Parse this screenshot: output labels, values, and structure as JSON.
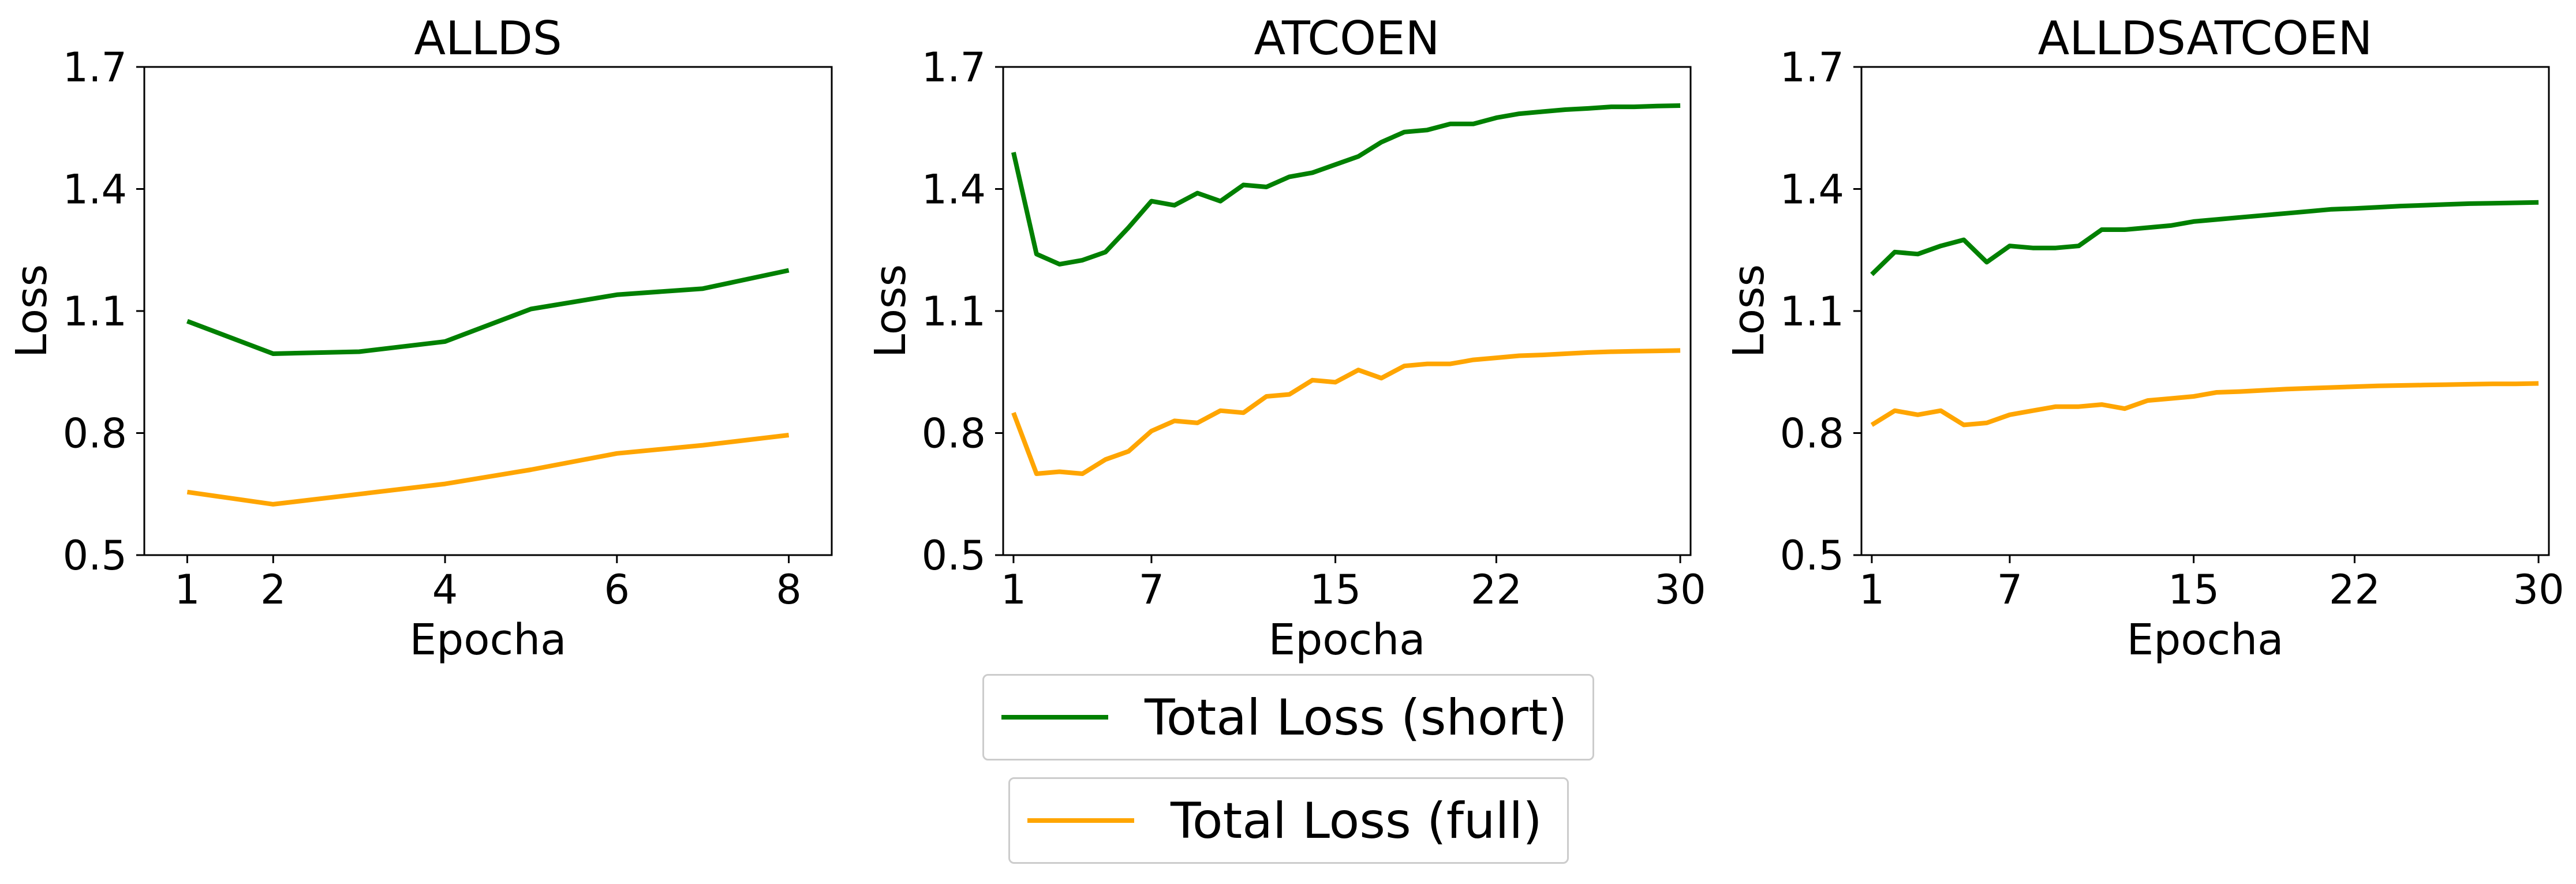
{
  "chart_data": [
    {
      "type": "line",
      "title": "ALLDS",
      "xlabel": "Epocha",
      "ylabel": "Loss",
      "ylim": [
        0.5,
        1.7
      ],
      "xlim": [
        0.5,
        8.5
      ],
      "xticks": [
        1,
        2,
        4,
        6,
        8
      ],
      "yticks": [
        0.5,
        0.8,
        1.1,
        1.4,
        1.7
      ],
      "ytick_labels": [
        "0.5",
        "0.8",
        "1.1",
        "1.4",
        "1.7"
      ],
      "grid": false,
      "x": [
        1,
        2,
        3,
        4,
        5,
        6,
        7,
        8
      ],
      "series": [
        {
          "color": "#008000",
          "values": [
            1.075,
            0.995,
            1.0,
            1.025,
            1.105,
            1.14,
            1.155,
            1.2
          ]
        },
        {
          "color": "#FFA500",
          "values": [
            0.655,
            0.625,
            0.65,
            0.675,
            0.71,
            0.75,
            0.77,
            0.795
          ]
        }
      ]
    },
    {
      "type": "line",
      "title": "ATCOEN",
      "xlabel": "Epocha",
      "ylabel": "Loss",
      "ylim": [
        0.5,
        1.7
      ],
      "xlim": [
        0.55,
        30.45
      ],
      "xticks": [
        1,
        7,
        15,
        22,
        30
      ],
      "yticks": [
        0.5,
        0.8,
        1.1,
        1.4,
        1.7
      ],
      "ytick_labels": [
        "0.5",
        "0.8",
        "1.1",
        "1.4",
        "1.7"
      ],
      "grid": false,
      "x": [
        1,
        2,
        3,
        4,
        5,
        6,
        7,
        8,
        9,
        10,
        11,
        12,
        13,
        14,
        15,
        16,
        17,
        18,
        19,
        20,
        21,
        22,
        23,
        24,
        25,
        26,
        27,
        28,
        29,
        30
      ],
      "series": [
        {
          "color": "#008000",
          "values": [
            1.49,
            1.24,
            1.215,
            1.225,
            1.245,
            1.305,
            1.37,
            1.36,
            1.39,
            1.37,
            1.41,
            1.405,
            1.43,
            1.44,
            1.46,
            1.48,
            1.515,
            1.54,
            1.545,
            1.56,
            1.56,
            1.575,
            1.585,
            1.59,
            1.595,
            1.598,
            1.602,
            1.602,
            1.604,
            1.605
          ]
        },
        {
          "color": "#FFA500",
          "values": [
            0.85,
            0.7,
            0.705,
            0.7,
            0.735,
            0.755,
            0.805,
            0.83,
            0.825,
            0.855,
            0.85,
            0.89,
            0.895,
            0.93,
            0.925,
            0.955,
            0.935,
            0.965,
            0.97,
            0.97,
            0.98,
            0.985,
            0.99,
            0.992,
            0.995,
            0.998,
            1.0,
            1.001,
            1.002,
            1.003
          ]
        }
      ]
    },
    {
      "type": "line",
      "title": "ALLDSATCOEN",
      "xlabel": "Epocha",
      "ylabel": "Loss",
      "ylim": [
        0.5,
        1.7
      ],
      "xlim": [
        0.55,
        30.45
      ],
      "xticks": [
        1,
        7,
        15,
        22,
        30
      ],
      "yticks": [
        0.5,
        0.8,
        1.1,
        1.4,
        1.7
      ],
      "ytick_labels": [
        "0.5",
        "0.8",
        "1.1",
        "1.4",
        "1.7"
      ],
      "grid": false,
      "x": [
        1,
        2,
        3,
        4,
        5,
        6,
        7,
        8,
        9,
        10,
        11,
        12,
        13,
        14,
        15,
        16,
        17,
        18,
        19,
        20,
        21,
        22,
        23,
        24,
        25,
        26,
        27,
        28,
        29,
        30
      ],
      "series": [
        {
          "color": "#008000",
          "values": [
            1.19,
            1.245,
            1.24,
            1.26,
            1.275,
            1.22,
            1.26,
            1.255,
            1.255,
            1.26,
            1.3,
            1.3,
            1.305,
            1.31,
            1.32,
            1.325,
            1.33,
            1.335,
            1.34,
            1.345,
            1.35,
            1.352,
            1.355,
            1.358,
            1.36,
            1.362,
            1.364,
            1.365,
            1.366,
            1.367
          ]
        },
        {
          "color": "#FFA500",
          "values": [
            0.82,
            0.855,
            0.845,
            0.855,
            0.82,
            0.825,
            0.845,
            0.855,
            0.865,
            0.865,
            0.87,
            0.86,
            0.88,
            0.885,
            0.89,
            0.9,
            0.902,
            0.905,
            0.908,
            0.91,
            0.912,
            0.914,
            0.916,
            0.917,
            0.918,
            0.919,
            0.92,
            0.921,
            0.921,
            0.922
          ]
        }
      ]
    }
  ],
  "legend": {
    "placement": "bottom-center",
    "entries": [
      {
        "label": "Total Loss (short)",
        "color": "#008000"
      },
      {
        "label": "Total Loss (full)",
        "color": "#FFA500"
      }
    ]
  }
}
